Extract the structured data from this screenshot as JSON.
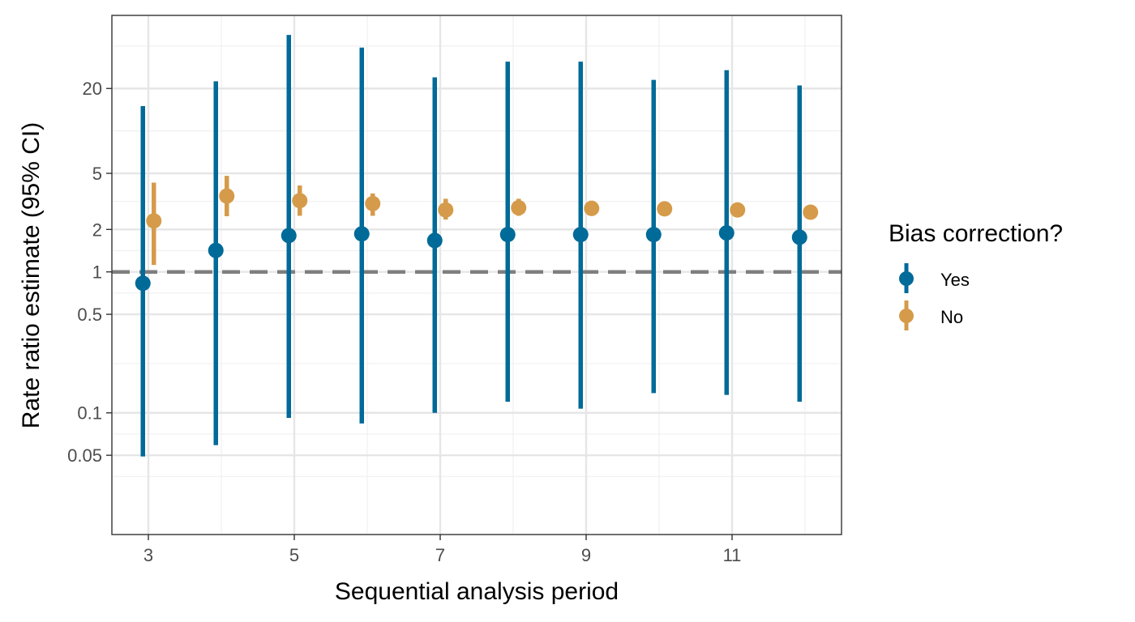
{
  "chart_data": {
    "type": "errorbar-scatter",
    "xlabel": "Sequential analysis period",
    "ylabel": "Rate ratio estimate (95% CI)",
    "y_scale": "log10",
    "xlim": [
      2.5,
      12.5
    ],
    "ylim": [
      0.0137,
      66
    ],
    "x_ticks": [
      3,
      5,
      7,
      9,
      11
    ],
    "x_tick_labels": [
      "3",
      "5",
      "7",
      "9",
      "11"
    ],
    "y_ticks": [
      0.05,
      0.1,
      0.5,
      1,
      2,
      5,
      20
    ],
    "y_tick_labels": [
      "0.05",
      "0.1",
      "0.5",
      "1",
      "2",
      "5",
      "20"
    ],
    "reference_line": {
      "y": 1,
      "style": "dashed",
      "color": "#7f7f7f"
    },
    "grid": true,
    "legend": {
      "title": "Bias correction?",
      "position": "right",
      "entries": [
        {
          "label": "Yes",
          "color": "#006A98"
        },
        {
          "label": "No",
          "color": "#D59B4A"
        }
      ]
    },
    "series": [
      {
        "name": "Yes",
        "color": "#006A98",
        "x": [
          3,
          4,
          5,
          6,
          7,
          8,
          9,
          10,
          11,
          12
        ],
        "estimate": [
          0.83,
          1.42,
          1.81,
          1.86,
          1.67,
          1.84,
          1.84,
          1.84,
          1.89,
          1.76
        ],
        "lower": [
          0.049,
          0.059,
          0.092,
          0.084,
          0.1,
          0.12,
          0.107,
          0.138,
          0.134,
          0.12
        ],
        "upper": [
          15,
          22.5,
          48,
          39,
          24,
          31,
          31,
          23,
          27,
          21
        ]
      },
      {
        "name": "No",
        "color": "#D59B4A",
        "x": [
          3,
          4,
          5,
          6,
          7,
          8,
          9,
          10,
          11,
          12
        ],
        "estimate": [
          2.3,
          3.45,
          3.2,
          3.05,
          2.75,
          2.85,
          2.82,
          2.8,
          2.75,
          2.65
        ],
        "lower": [
          1.12,
          2.48,
          2.5,
          2.5,
          2.35,
          2.5,
          2.5,
          2.55,
          2.55,
          2.55
        ],
        "upper": [
          4.3,
          4.8,
          4.1,
          3.6,
          3.3,
          3.3,
          3.2,
          3.15,
          3.0,
          2.85
        ]
      }
    ]
  }
}
